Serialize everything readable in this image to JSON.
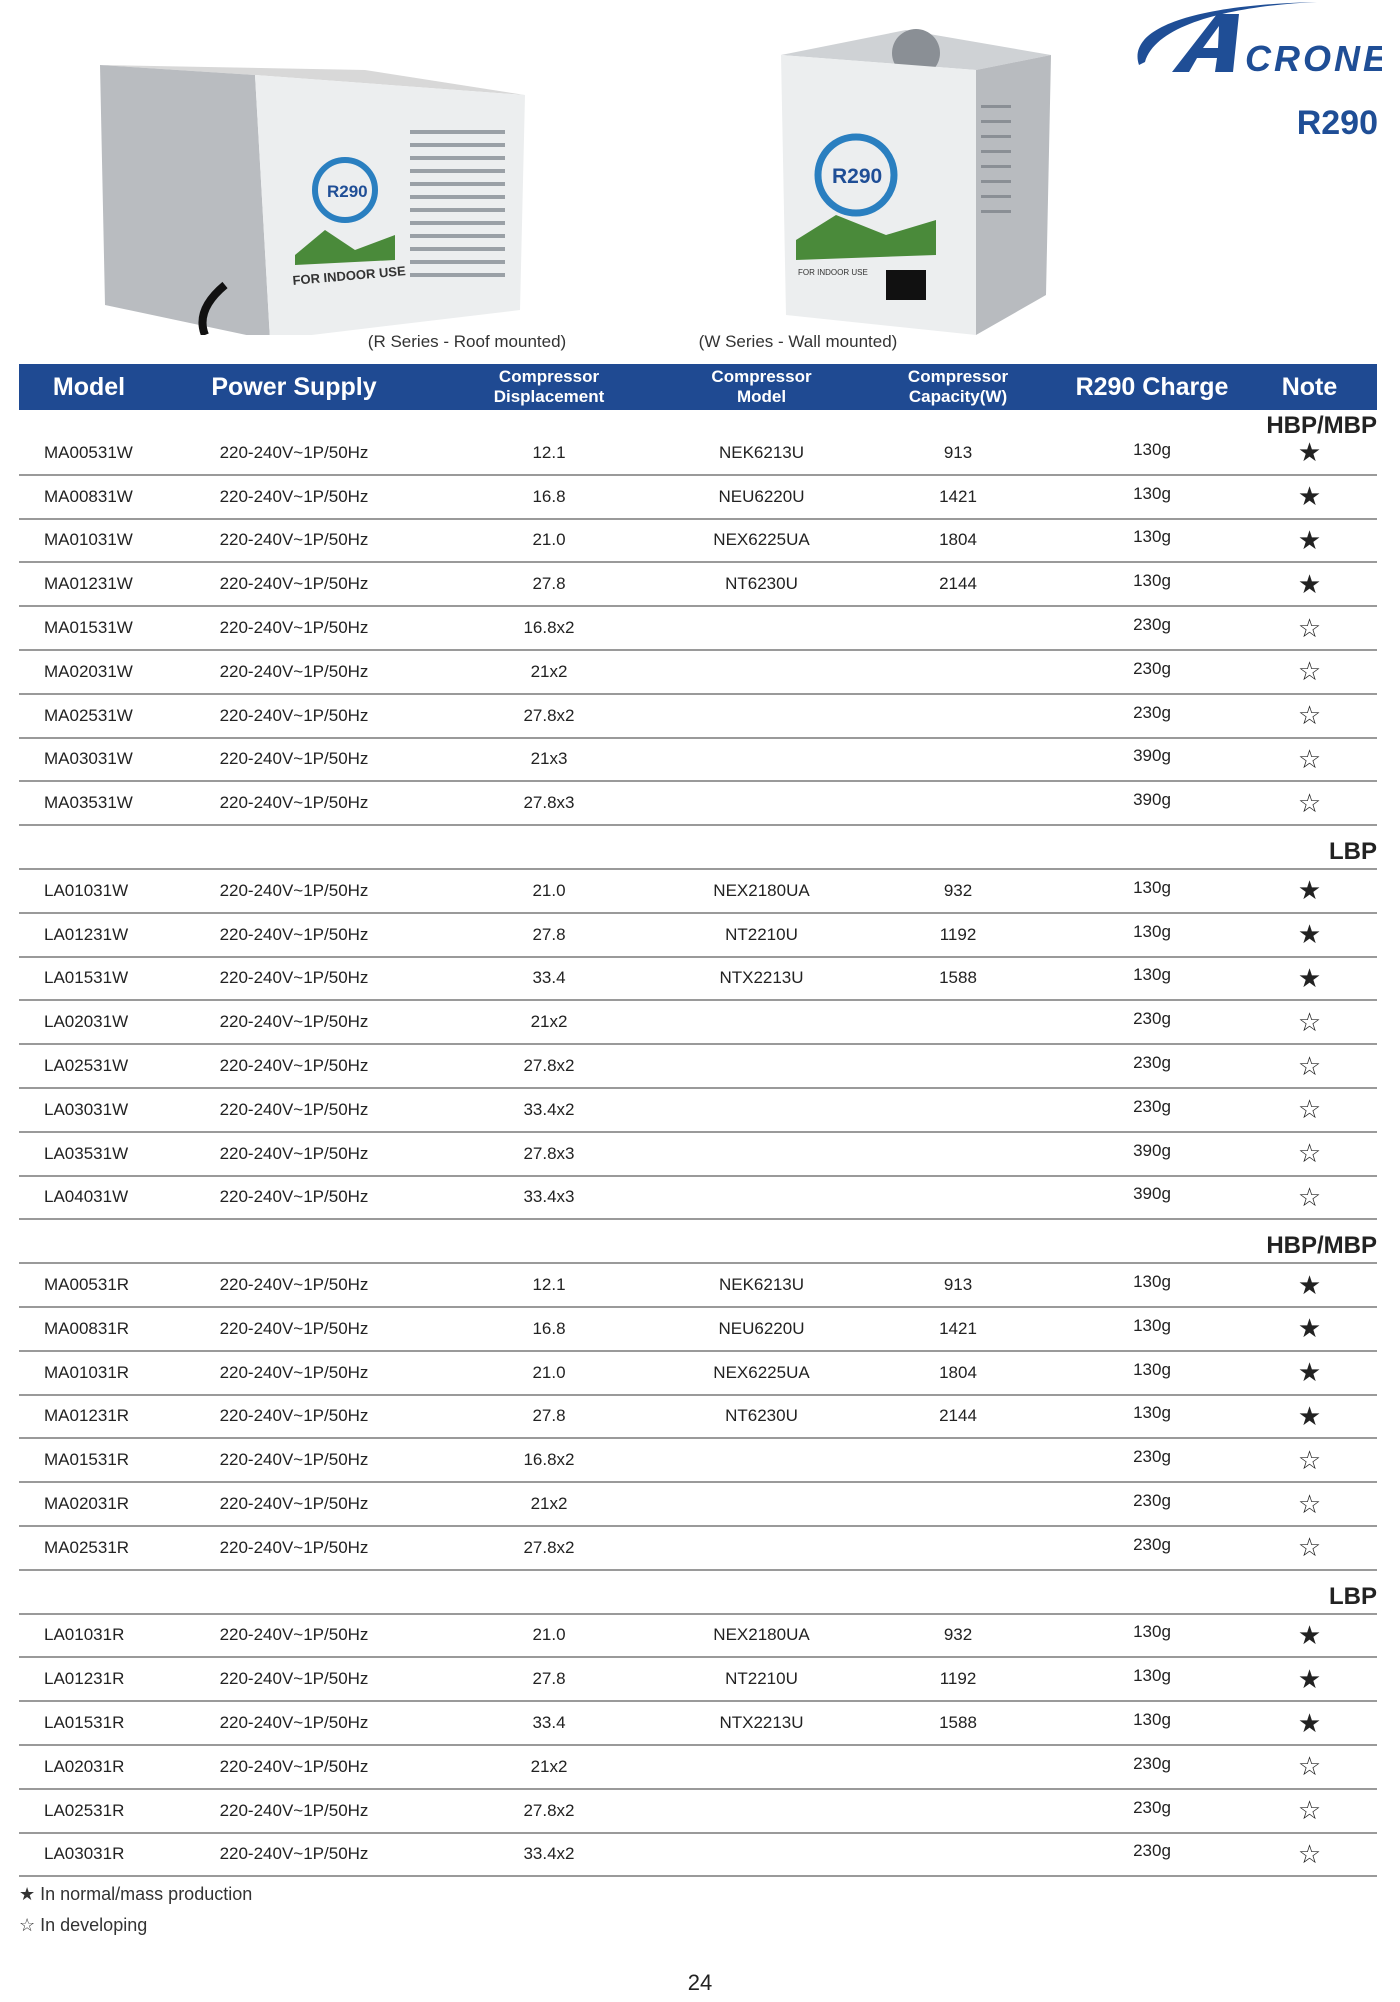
{
  "brand": {
    "logo_text": "ACRONE",
    "refrigerant": "R290",
    "color": "#1f4e96"
  },
  "images": {
    "roof": {
      "caption": "(R Series - Roof mounted)",
      "label": "FOR INDOOR USE",
      "badge": "R290"
    },
    "wall": {
      "caption": "(W Series - Wall mounted)",
      "label": "FOR INDOOR USE",
      "badge": "R290"
    }
  },
  "table": {
    "header_color": "#1f4a92",
    "columns": [
      "Model",
      "Power Supply",
      "Compressor Displacement",
      "Compressor Model",
      "Compressor Capacity(W)",
      "R290 Charge",
      "Note"
    ],
    "columns_lines": [
      [
        "Model"
      ],
      [
        "Power Supply"
      ],
      [
        "Compressor",
        "Displacement"
      ],
      [
        "Compressor",
        "Model"
      ],
      [
        "Compressor",
        "Capacity(W)"
      ],
      [
        "R290 Charge"
      ],
      [
        "Note"
      ]
    ],
    "sections": [
      {
        "label": "HBP/MBP",
        "rows": [
          [
            "MA00531W",
            "220-240V~1P/50Hz",
            "12.1",
            "NEK6213U",
            "913",
            "130g",
            "★"
          ],
          [
            "MA00831W",
            "220-240V~1P/50Hz",
            "16.8",
            "NEU6220U",
            "1421",
            "130g",
            "★"
          ],
          [
            "MA01031W",
            "220-240V~1P/50Hz",
            "21.0",
            "NEX6225UA",
            "1804",
            "130g",
            "★"
          ],
          [
            "MA01231W",
            "220-240V~1P/50Hz",
            "27.8",
            "NT6230U",
            "2144",
            "130g",
            "★"
          ],
          [
            "MA01531W",
            "220-240V~1P/50Hz",
            "16.8x2",
            "",
            "",
            "230g",
            "☆"
          ],
          [
            "MA02031W",
            "220-240V~1P/50Hz",
            "21x2",
            "",
            "",
            "230g",
            "☆"
          ],
          [
            "MA02531W",
            "220-240V~1P/50Hz",
            "27.8x2",
            "",
            "",
            "230g",
            "☆"
          ],
          [
            "MA03031W",
            "220-240V~1P/50Hz",
            "21x3",
            "",
            "",
            "390g",
            "☆"
          ],
          [
            "MA03531W",
            "220-240V~1P/50Hz",
            "27.8x3",
            "",
            "",
            "390g",
            "☆"
          ]
        ]
      },
      {
        "label": "LBP",
        "rows": [
          [
            "LA01031W",
            "220-240V~1P/50Hz",
            "21.0",
            "NEX2180UA",
            "932",
            "130g",
            "★"
          ],
          [
            "LA01231W",
            "220-240V~1P/50Hz",
            "27.8",
            "NT2210U",
            "1192",
            "130g",
            "★"
          ],
          [
            "LA01531W",
            "220-240V~1P/50Hz",
            "33.4",
            "NTX2213U",
            "1588",
            "130g",
            "★"
          ],
          [
            "LA02031W",
            "220-240V~1P/50Hz",
            "21x2",
            "",
            "",
            "230g",
            "☆"
          ],
          [
            "LA02531W",
            "220-240V~1P/50Hz",
            "27.8x2",
            "",
            "",
            "230g",
            "☆"
          ],
          [
            "LA03031W",
            "220-240V~1P/50Hz",
            "33.4x2",
            "",
            "",
            "230g",
            "☆"
          ],
          [
            "LA03531W",
            "220-240V~1P/50Hz",
            "27.8x3",
            "",
            "",
            "390g",
            "☆"
          ],
          [
            "LA04031W",
            "220-240V~1P/50Hz",
            "33.4x3",
            "",
            "",
            "390g",
            "☆"
          ]
        ]
      },
      {
        "label": "HBP/MBP",
        "rows": [
          [
            "MA00531R",
            "220-240V~1P/50Hz",
            "12.1",
            "NEK6213U",
            "913",
            "130g",
            "★"
          ],
          [
            "MA00831R",
            "220-240V~1P/50Hz",
            "16.8",
            "NEU6220U",
            "1421",
            "130g",
            "★"
          ],
          [
            "MA01031R",
            "220-240V~1P/50Hz",
            "21.0",
            "NEX6225UA",
            "1804",
            "130g",
            "★"
          ],
          [
            "MA01231R",
            "220-240V~1P/50Hz",
            "27.8",
            "NT6230U",
            "2144",
            "130g",
            "★"
          ],
          [
            "MA01531R",
            "220-240V~1P/50Hz",
            "16.8x2",
            "",
            "",
            "230g",
            "☆"
          ],
          [
            "MA02031R",
            "220-240V~1P/50Hz",
            "21x2",
            "",
            "",
            "230g",
            "☆"
          ],
          [
            "MA02531R",
            "220-240V~1P/50Hz",
            "27.8x2",
            "",
            "",
            "230g",
            "☆"
          ]
        ]
      },
      {
        "label": "LBP",
        "rows": [
          [
            "LA01031R",
            "220-240V~1P/50Hz",
            "21.0",
            "NEX2180UA",
            "932",
            "130g",
            "★"
          ],
          [
            "LA01231R",
            "220-240V~1P/50Hz",
            "27.8",
            "NT2210U",
            "1192",
            "130g",
            "★"
          ],
          [
            "LA01531R",
            "220-240V~1P/50Hz",
            "33.4",
            "NTX2213U",
            "1588",
            "130g",
            "★"
          ],
          [
            "LA02031R",
            "220-240V~1P/50Hz",
            "21x2",
            "",
            "",
            "230g",
            "☆"
          ],
          [
            "LA02531R",
            "220-240V~1P/50Hz",
            "27.8x2",
            "",
            "",
            "230g",
            "☆"
          ],
          [
            "LA03031R",
            "220-240V~1P/50Hz",
            "33.4x2",
            "",
            "",
            "230g",
            "☆"
          ]
        ]
      }
    ]
  },
  "legend": {
    "filled": "★ In normal/mass production",
    "hollow": "☆ In developing"
  },
  "page_number": "24"
}
